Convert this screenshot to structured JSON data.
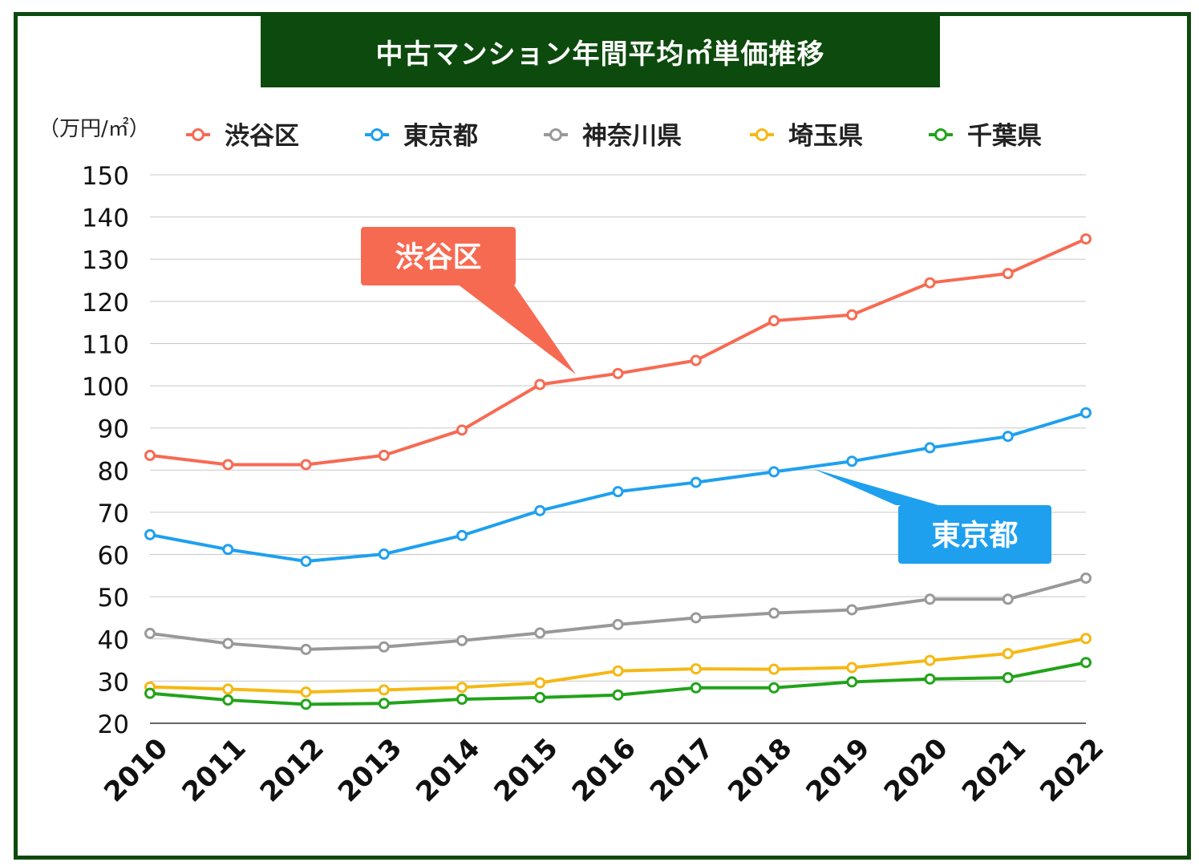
{
  "chart_data": {
    "type": "line",
    "title": "中古マンション年間平均㎡単価推移",
    "ylabel": "（万円/㎡）",
    "xlabel": "",
    "ylim": [
      20,
      150
    ],
    "yticks": [
      20,
      30,
      40,
      50,
      60,
      70,
      80,
      90,
      100,
      110,
      120,
      130,
      140,
      150
    ],
    "categories": [
      "2010",
      "2011",
      "2012",
      "2013",
      "2014",
      "2015",
      "2016",
      "2017",
      "2018",
      "2019",
      "2020",
      "2021",
      "2022"
    ],
    "series": [
      {
        "name": "渋谷区",
        "color": "#f76a52",
        "values": [
          83.5,
          81.3,
          81.3,
          83.5,
          89.5,
          100.3,
          102.9,
          106.0,
          115.4,
          116.8,
          124.4,
          126.6,
          134.8
        ]
      },
      {
        "name": "東京都",
        "color": "#1ea0ef",
        "values": [
          64.7,
          61.2,
          58.4,
          60.1,
          64.5,
          70.4,
          74.9,
          77.1,
          79.6,
          82.1,
          85.3,
          88.0,
          93.6
        ]
      },
      {
        "name": "神奈川県",
        "color": "#999999",
        "values": [
          41.3,
          38.9,
          37.5,
          38.1,
          39.6,
          41.4,
          43.4,
          45.0,
          46.1,
          46.9,
          49.4,
          49.4,
          54.4
        ]
      },
      {
        "name": "埼玉県",
        "color": "#f5b814",
        "values": [
          28.6,
          28.1,
          27.4,
          27.9,
          28.5,
          29.6,
          32.4,
          32.9,
          32.8,
          33.2,
          34.9,
          36.5,
          40.1
        ]
      },
      {
        "name": "千葉県",
        "color": "#22a31a",
        "values": [
          27.1,
          25.5,
          24.5,
          24.7,
          25.7,
          26.1,
          26.7,
          28.4,
          28.4,
          29.8,
          30.5,
          30.8,
          34.4
        ]
      }
    ],
    "annotations": [
      {
        "text": "渋谷区",
        "series": "渋谷区",
        "color": "#f76a52"
      },
      {
        "text": "東京都",
        "series": "東京都",
        "color": "#1ea0ef"
      }
    ],
    "legend": "top",
    "grid": true
  }
}
